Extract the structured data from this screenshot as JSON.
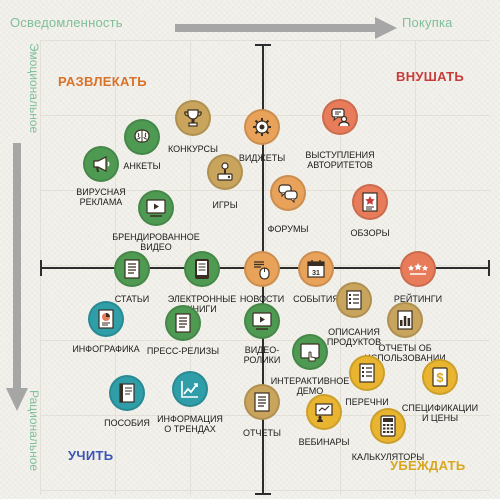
{
  "axes": {
    "top_left": "Осведомленность",
    "top_right": "Покупка",
    "left_top": "Эмоциональное",
    "left_bottom": "Рациональное"
  },
  "quadrants": {
    "entertain": "РАЗВЛЕКАТЬ",
    "inspire": "ВНУШАТЬ",
    "educate": "УЧИТЬ",
    "convince": "УБЕЖДАТЬ"
  },
  "colors": {
    "entertain": "#d9722b",
    "inspire": "#c73b3b",
    "educate": "#3a55b5",
    "convince": "#d8a820",
    "axis_label": "#7fbf9a",
    "arrow": "#a6a6a6",
    "node_orange": "#e8a25a",
    "node_gold": "#c9a45c",
    "node_green": "#4f9a52",
    "node_teal": "#2f9ea8",
    "node_yellow": "#e9b531"
  },
  "nodes": [
    {
      "id": "contests",
      "label": "КОНКУРСЫ",
      "icon": "trophy",
      "color": "#c9a45c"
    },
    {
      "id": "polls",
      "label": "АНКЕТЫ",
      "icon": "brain",
      "color": "#4f9a52"
    },
    {
      "id": "widgets",
      "label": "ВИДЖЕТЫ",
      "icon": "gear",
      "color": "#e8a25a"
    },
    {
      "id": "speakers",
      "label": "ВЫСТУПЛЕНИЯ\nАВТОРИТЕТОВ",
      "icon": "speaker",
      "color": "#e87b5a"
    },
    {
      "id": "viral",
      "label": "ВИРУСНАЯ\nРЕКЛАМА",
      "icon": "megaphone",
      "color": "#4f9a52"
    },
    {
      "id": "games",
      "label": "ИГРЫ",
      "icon": "joystick",
      "color": "#c9a45c"
    },
    {
      "id": "forums",
      "label": "ФОРУМЫ",
      "icon": "chat",
      "color": "#e8a25a"
    },
    {
      "id": "reviews",
      "label": "ОБЗОРЫ",
      "icon": "star-doc",
      "color": "#e87b5a"
    },
    {
      "id": "branded",
      "label": "БРЕНДИРОВАННОЕ\nВИДЕО",
      "icon": "play-screen",
      "color": "#4f9a52"
    },
    {
      "id": "articles",
      "label": "СТАТЬИ",
      "icon": "doc",
      "color": "#4f9a52"
    },
    {
      "id": "ebooks",
      "label": "ЭЛЕКТРОННЫЕ\nКНИГИ",
      "icon": "tablet",
      "color": "#4f9a52"
    },
    {
      "id": "news",
      "label": "НОВОСТИ",
      "icon": "news-mouse",
      "color": "#e8a25a"
    },
    {
      "id": "events",
      "label": "СОБЫТИЯ",
      "icon": "calendar",
      "color": "#e8a25a"
    },
    {
      "id": "ratings",
      "label": "РЕЙТИНГИ",
      "icon": "stars",
      "color": "#e87b5a"
    },
    {
      "id": "infographics",
      "label": "ИНФОГРАФИКА",
      "icon": "pie-doc",
      "color": "#2f9ea8"
    },
    {
      "id": "press",
      "label": "ПРЕСС-РЕЛИЗЫ",
      "icon": "doc",
      "color": "#4f9a52"
    },
    {
      "id": "videos",
      "label": "ВИДЕО-\nРОЛИКИ",
      "icon": "play-screen",
      "color": "#4f9a52"
    },
    {
      "id": "product_desc",
      "label": "ОПИСАНИЯ\nПРОДУКТОВ",
      "icon": "list-doc",
      "color": "#c9a45c"
    },
    {
      "id": "usage_reports",
      "label": "ОТЧЕТЫ ОБ\nИСПОЛЬЗОВАНИИ",
      "icon": "bars-doc",
      "color": "#c9a45c"
    },
    {
      "id": "interactive",
      "label": "ИНТЕРАКТИВНОЕ\nДЕМО",
      "icon": "hand-screen",
      "color": "#4f9a52"
    },
    {
      "id": "checklists",
      "label": "ПЕРЕЧНИ",
      "icon": "list-doc",
      "color": "#e9b531"
    },
    {
      "id": "manuals",
      "label": "ПОСОБИЯ",
      "icon": "book",
      "color": "#2f9ea8"
    },
    {
      "id": "trends",
      "label": "ИНФОРМАЦИЯ\nО ТРЕНДАХ",
      "icon": "trend",
      "color": "#2f9ea8"
    },
    {
      "id": "reports",
      "label": "ОТЧЕТЫ",
      "icon": "doc",
      "color": "#c9a45c"
    },
    {
      "id": "webinars",
      "label": "ВЕБИНАРЫ",
      "icon": "presenter",
      "color": "#e9b531"
    },
    {
      "id": "specs",
      "label": "СПЕЦИФИКАЦИИ\nИ ЦЕНЫ",
      "icon": "dollar",
      "color": "#e9b531"
    },
    {
      "id": "calculators",
      "label": "КАЛЬКУЛЯТОРЫ",
      "icon": "calculator",
      "color": "#e9b531"
    }
  ]
}
